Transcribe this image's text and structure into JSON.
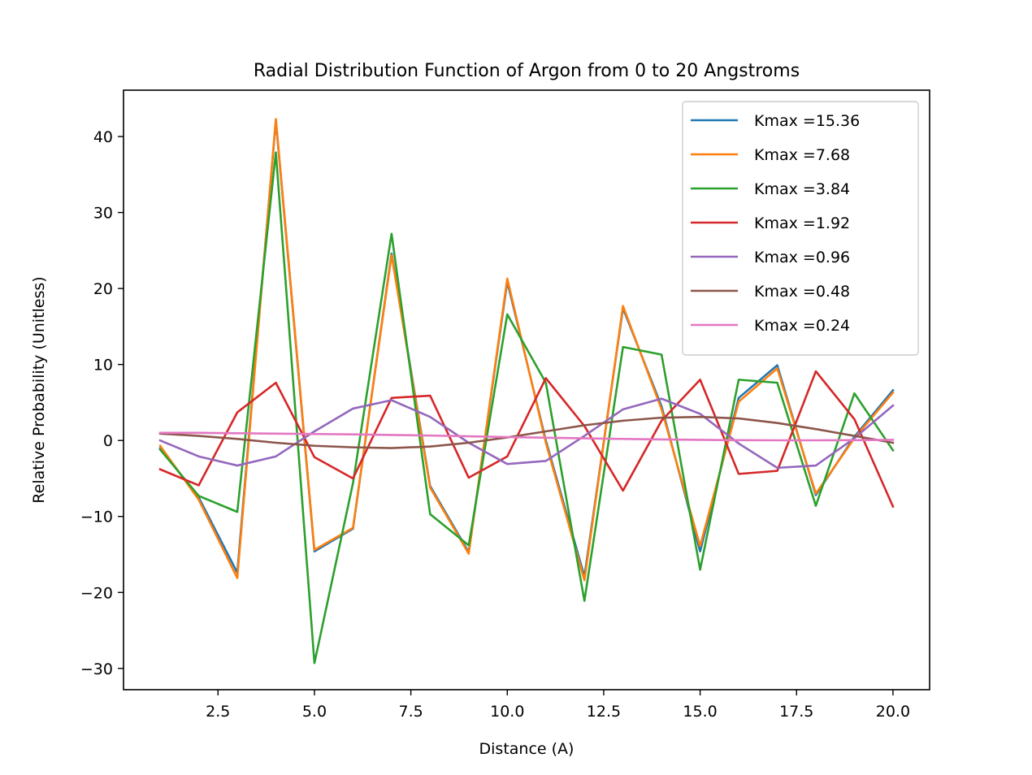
{
  "chart_data": {
    "type": "line",
    "title": "Radial Distribution Function of Argon from 0 to 20 Angstroms",
    "xlabel": "Distance (A)",
    "ylabel": "Relative Probability (Unitless)",
    "xlim": [
      0.05,
      20.95
    ],
    "ylim": [
      -32.8,
      46.1
    ],
    "xticks": [
      2.5,
      5.0,
      7.5,
      10.0,
      12.5,
      15.0,
      17.5,
      20.0
    ],
    "xtick_labels": [
      "2.5",
      "5.0",
      "7.5",
      "10.0",
      "12.5",
      "15.0",
      "17.5",
      "20.0"
    ],
    "yticks": [
      -30,
      -20,
      -10,
      0,
      10,
      20,
      30,
      40
    ],
    "ytick_labels": [
      "−30",
      "−20",
      "−10",
      "0",
      "10",
      "20",
      "30",
      "40"
    ],
    "grid": false,
    "legend_position": "upper right",
    "x": [
      1,
      2,
      3,
      4,
      5,
      6,
      7,
      8,
      9,
      10,
      11,
      12,
      13,
      14,
      15,
      16,
      17,
      18,
      19,
      20
    ],
    "series": [
      {
        "name": "Kmax =15.36",
        "color": "#1f77b4",
        "values": [
          -1.0,
          -7.5,
          -17.4,
          42.1,
          -14.6,
          -11.6,
          24.6,
          -6.0,
          -14.7,
          20.9,
          0.0,
          -17.9,
          17.4,
          4.5,
          -14.6,
          5.6,
          9.9,
          -7.2,
          0.5,
          6.6
        ]
      },
      {
        "name": "Kmax =7.68",
        "color": "#ff7f0e",
        "values": [
          -0.7,
          -7.8,
          -18.1,
          42.3,
          -14.4,
          -11.5,
          24.4,
          -6.2,
          -14.9,
          21.3,
          -0.3,
          -18.4,
          17.7,
          4.1,
          -13.9,
          5.1,
          9.5,
          -7.0,
          0.3,
          6.3
        ]
      },
      {
        "name": "Kmax =3.84",
        "color": "#2ca02c",
        "values": [
          -1.2,
          -7.3,
          -9.4,
          37.9,
          -29.3,
          -5.6,
          27.2,
          -9.7,
          -13.8,
          16.6,
          7.6,
          -21.1,
          12.3,
          11.3,
          -17.0,
          8.0,
          7.6,
          -8.6,
          6.2,
          -1.3
        ]
      },
      {
        "name": "Kmax =1.92",
        "color": "#d62728",
        "values": [
          -3.8,
          -5.9,
          3.7,
          7.6,
          -2.2,
          -5.0,
          5.6,
          5.9,
          -4.9,
          -2.1,
          8.2,
          1.9,
          -6.6,
          2.6,
          8.0,
          -4.4,
          -4.0,
          9.1,
          2.8,
          -8.7
        ]
      },
      {
        "name": "Kmax =0.96",
        "color": "#9467bd",
        "values": [
          0.0,
          -2.1,
          -3.3,
          -2.1,
          1.2,
          4.2,
          5.3,
          3.1,
          -0.3,
          -3.1,
          -2.7,
          0.6,
          4.1,
          5.5,
          3.5,
          -0.4,
          -3.6,
          -3.3,
          0.3,
          4.6
        ]
      },
      {
        "name": "Kmax =0.48",
        "color": "#8c564b",
        "values": [
          0.9,
          0.6,
          0.2,
          -0.3,
          -0.7,
          -0.9,
          -1.0,
          -0.8,
          -0.3,
          0.4,
          1.2,
          2.0,
          2.6,
          3.0,
          3.1,
          2.9,
          2.3,
          1.5,
          0.6,
          -0.3
        ]
      },
      {
        "name": "Kmax =0.24",
        "color": "#e377c2",
        "values": [
          1.0,
          1.0,
          0.95,
          0.9,
          0.85,
          0.8,
          0.72,
          0.65,
          0.55,
          0.45,
          0.36,
          0.28,
          0.2,
          0.14,
          0.08,
          0.04,
          0.02,
          0.02,
          0.04,
          0.08
        ]
      }
    ]
  }
}
